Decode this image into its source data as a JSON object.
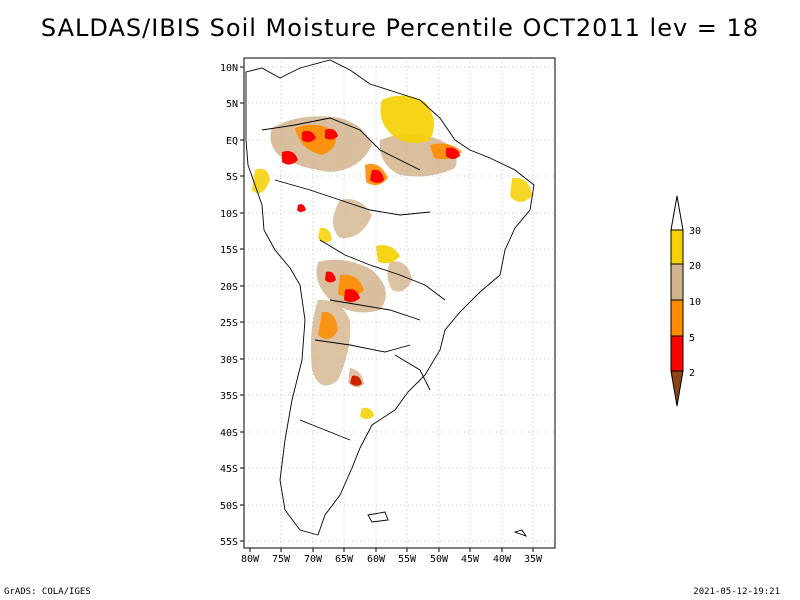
{
  "title": "SALDAS/IBIS Soil Moisture Percentile OCT2011 lev = 18",
  "map": {
    "lon_labels": [
      "80W",
      "75W",
      "70W",
      "65W",
      "60W",
      "55W",
      "50W",
      "45W",
      "40W",
      "35W"
    ],
    "lat_labels": [
      "10N",
      "5N",
      "EQ",
      "5S",
      "10S",
      "15S",
      "20S",
      "25S",
      "30S",
      "35S",
      "40S",
      "45S",
      "50S",
      "55S"
    ],
    "lon_range": [
      -81,
      -33
    ],
    "lat_range": [
      -56,
      12
    ]
  },
  "legend": {
    "labels": [
      "30",
      "20",
      "10",
      "5",
      "2"
    ],
    "colors": {
      "above30": "#ffffff",
      "20-30": "#f5d000",
      "10-20": "#d2b48c",
      "5-10": "#ff8c00",
      "2-5": "#ff0000",
      "below2": "#8b4513"
    }
  },
  "footer": {
    "left": "GrADS: COLA/IGES",
    "right": "2021-05-12-19:21"
  }
}
